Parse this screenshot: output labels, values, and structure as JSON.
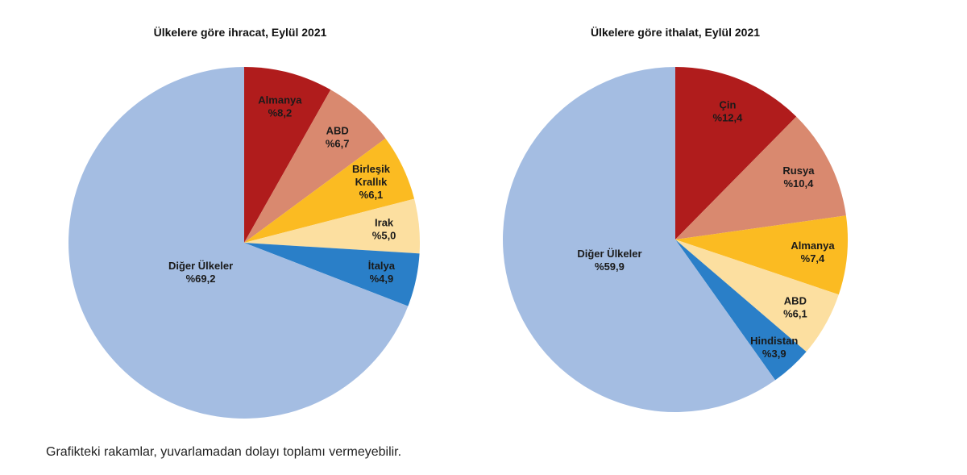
{
  "chart_data": [
    {
      "type": "pie",
      "title": "Ülkelere göre ihracat, Eylül 2021",
      "slices": [
        {
          "label": "Almanya",
          "value": 8.2,
          "value_label": "%8,2",
          "color": "#B01C1C"
        },
        {
          "label": "ABD",
          "value": 6.7,
          "value_label": "%6,7",
          "color": "#D9896F"
        },
        {
          "label": "Birleşik Krallık",
          "value": 6.1,
          "value_label": "%6,1",
          "color": "#FBBB22"
        },
        {
          "label": "Irak",
          "value": 5.0,
          "value_label": "%5,0",
          "color": "#FCDFA0"
        },
        {
          "label": "İtalya",
          "value": 4.9,
          "value_label": "%4,9",
          "color": "#2A7FC8"
        },
        {
          "label": "Diğer Ülkeler",
          "value": 69.2,
          "value_label": "%69,2",
          "color": "#A4BDE2"
        }
      ]
    },
    {
      "type": "pie",
      "title": "Ülkelere göre ithalat, Eylül 2021",
      "slices": [
        {
          "label": "Çin",
          "value": 12.4,
          "value_label": "%12,4",
          "color": "#B01C1C"
        },
        {
          "label": "Rusya",
          "value": 10.4,
          "value_label": "%10,4",
          "color": "#D9896F"
        },
        {
          "label": "Almanya",
          "value": 7.4,
          "value_label": "%7,4",
          "color": "#FBBB22"
        },
        {
          "label": "ABD",
          "value": 6.1,
          "value_label": "%6,1",
          "color": "#FCDFA0"
        },
        {
          "label": "Hindistan",
          "value": 3.9,
          "value_label": "%3,9",
          "color": "#2A7FC8"
        },
        {
          "label": "Diğer Ülkeler",
          "value": 59.9,
          "value_label": "%59,9",
          "color": "#A4BDE2"
        }
      ]
    }
  ],
  "footnote": "Grafikteki rakamlar, yuvarlamadan dolayı toplamı vermeyebilir."
}
